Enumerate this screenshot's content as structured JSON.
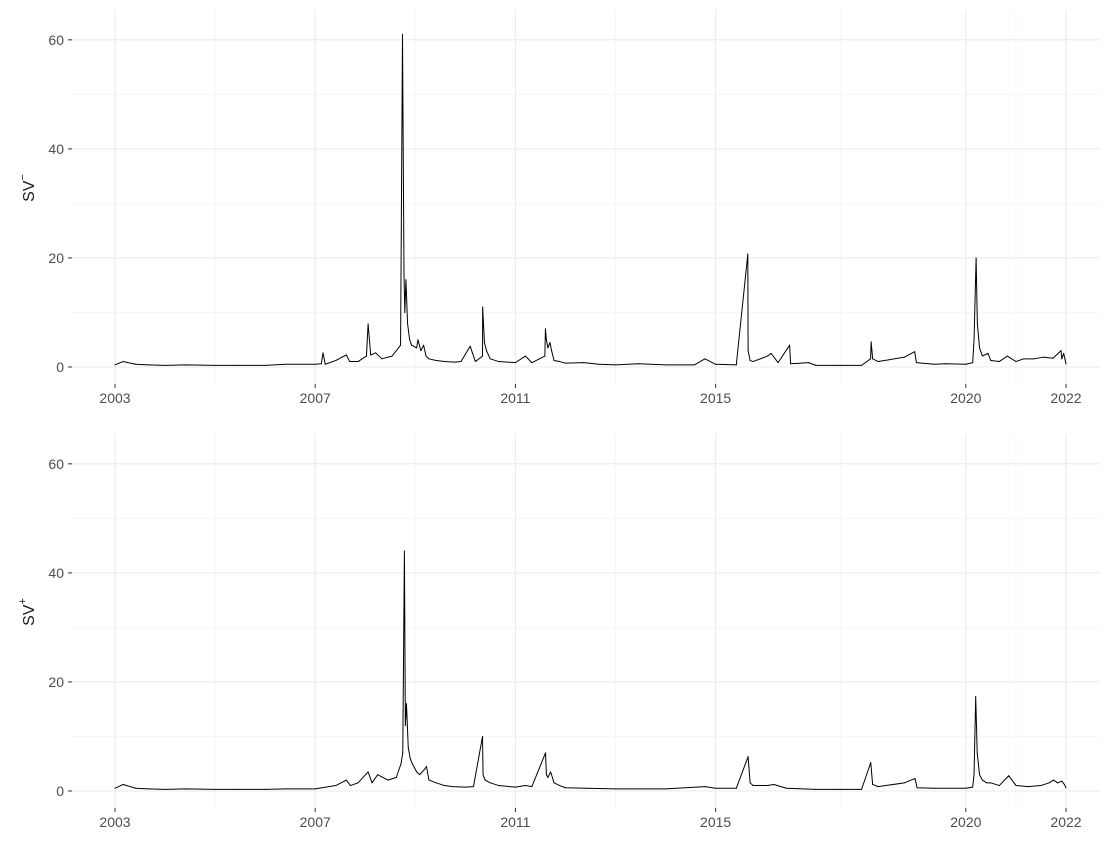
{
  "chart_data": [
    {
      "type": "line",
      "ylabel": "SV",
      "ylabel_sup": "−",
      "xlim": [
        "2003-01-01",
        "2022-01-01"
      ],
      "ylim": [
        0,
        64
      ],
      "x_ticks": [
        "2003",
        "2007",
        "2011",
        "2015",
        "2020",
        "2022"
      ],
      "y_ticks": [
        "0",
        "20",
        "40",
        "60"
      ],
      "grid": true,
      "color": "#000000",
      "series": [
        {
          "x": [
            "2003-01-01",
            "2003-03-01",
            "2003-06-01",
            "2003-09-01",
            "2004-01-01",
            "2004-06-01",
            "2005-01-01",
            "2005-06-01",
            "2006-01-01",
            "2006-06-01",
            "2007-01-01",
            "2007-02-15",
            "2007-02-27",
            "2007-03-15",
            "2007-06-01",
            "2007-07-15",
            "2007-08-16",
            "2007-09-10",
            "2007-11-10",
            "2008-01-10",
            "2008-01-22",
            "2008-02-10",
            "2008-03-17",
            "2008-05-01",
            "2008-07-15",
            "2008-09-15",
            "2008-09-29",
            "2008-10-10",
            "2008-10-16",
            "2008-10-24",
            "2008-11-05",
            "2008-11-20",
            "2008-12-05",
            "2009-01-10",
            "2009-01-20",
            "2009-02-10",
            "2009-03-02",
            "2009-03-20",
            "2009-04-10",
            "2009-06-01",
            "2009-08-01",
            "2009-10-15",
            "2009-11-30",
            "2010-02-05",
            "2010-03-15",
            "2010-05-06",
            "2010-05-07",
            "2010-05-20",
            "2010-06-04",
            "2010-07-01",
            "2010-09-01",
            "2011-01-01",
            "2011-03-15",
            "2011-05-01",
            "2011-08-04",
            "2011-08-08",
            "2011-08-15",
            "2011-08-26",
            "2011-09-10",
            "2011-09-22",
            "2011-10-10",
            "2011-11-20",
            "2012-01-01",
            "2012-05-15",
            "2012-09-01",
            "2013-01-01",
            "2013-06-20",
            "2014-01-01",
            "2014-08-01",
            "2014-10-15",
            "2015-01-01",
            "2015-06-01",
            "2015-08-24",
            "2015-08-26",
            "2015-09-10",
            "2015-10-01",
            "2016-01-15",
            "2016-02-10",
            "2016-04-01",
            "2016-06-24",
            "2016-07-01",
            "2016-11-09",
            "2017-01-01",
            "2017-06-01",
            "2017-12-01",
            "2018-02-05",
            "2018-02-09",
            "2018-02-20",
            "2018-04-01",
            "2018-10-10",
            "2018-12-24",
            "2019-01-05",
            "2019-05-15",
            "2019-08-05",
            "2020-01-01",
            "2020-02-20",
            "2020-03-01",
            "2020-03-16",
            "2020-03-25",
            "2020-04-10",
            "2020-05-01",
            "2020-06-11",
            "2020-07-01",
            "2020-09-01",
            "2020-10-30",
            "2021-01-01",
            "2021-02-26",
            "2021-05-12",
            "2021-07-19",
            "2021-09-28",
            "2021-11-26",
            "2021-12-01",
            "2021-12-15",
            "2022-01-01"
          ],
          "y": [
            0.4,
            1.0,
            0.5,
            0.4,
            0.3,
            0.4,
            0.3,
            0.3,
            0.3,
            0.5,
            0.5,
            0.6,
            2.6,
            0.5,
            1.2,
            1.8,
            2.2,
            1.0,
            1.0,
            2.0,
            7.9,
            2.2,
            2.6,
            1.5,
            2.0,
            4.0,
            61.0,
            17.0,
            10.0,
            16.0,
            8.0,
            5.0,
            4.0,
            3.5,
            5.0,
            3.0,
            4.0,
            2.0,
            1.5,
            1.2,
            1.0,
            0.9,
            1.0,
            3.8,
            1.0,
            2.0,
            11.0,
            4.5,
            3.0,
            1.5,
            1.0,
            0.8,
            2.0,
            0.8,
            2.0,
            7.0,
            5.0,
            3.5,
            4.5,
            3.0,
            1.2,
            1.0,
            0.7,
            0.8,
            0.5,
            0.4,
            0.6,
            0.4,
            0.4,
            1.5,
            0.5,
            0.4,
            20.7,
            3.0,
            1.2,
            1.0,
            2.0,
            2.5,
            0.8,
            4.0,
            0.6,
            0.8,
            0.3,
            0.3,
            0.3,
            1.5,
            4.6,
            1.5,
            1.0,
            1.8,
            2.8,
            0.8,
            0.5,
            0.6,
            0.5,
            0.8,
            5.0,
            20.0,
            8.0,
            3.5,
            2.0,
            2.5,
            1.2,
            1.0,
            2.0,
            1.0,
            1.5,
            1.5,
            1.8,
            1.6,
            3.0,
            1.5,
            2.5,
            0.6
          ]
        }
      ]
    },
    {
      "type": "line",
      "ylabel": "SV",
      "ylabel_sup": "+",
      "xlim": [
        "2003-01-01",
        "2022-01-01"
      ],
      "ylim": [
        0,
        64
      ],
      "x_ticks": [
        "2003",
        "2007",
        "2011",
        "2015",
        "2020",
        "2022"
      ],
      "y_ticks": [
        "0",
        "20",
        "40",
        "60"
      ],
      "grid": true,
      "color": "#000000",
      "series": [
        {
          "x": [
            "2003-01-01",
            "2003-03-01",
            "2003-06-01",
            "2003-09-01",
            "2004-01-01",
            "2004-06-01",
            "2005-01-01",
            "2005-06-01",
            "2006-01-01",
            "2006-06-01",
            "2007-01-01",
            "2007-06-01",
            "2007-08-16",
            "2007-09-15",
            "2007-11-10",
            "2008-01-22",
            "2008-02-20",
            "2008-04-01",
            "2008-06-15",
            "2008-08-15",
            "2008-09-18",
            "2008-10-01",
            "2008-10-13",
            "2008-10-20",
            "2008-10-28",
            "2008-11-10",
            "2008-11-24",
            "2008-12-10",
            "2009-01-10",
            "2009-02-01",
            "2009-03-10",
            "2009-03-23",
            "2009-04-10",
            "2009-06-01",
            "2009-08-01",
            "2009-10-01",
            "2010-01-01",
            "2010-03-01",
            "2010-05-06",
            "2010-05-10",
            "2010-05-25",
            "2010-07-01",
            "2010-09-01",
            "2011-01-01",
            "2011-03-15",
            "2011-05-01",
            "2011-08-09",
            "2011-08-15",
            "2011-08-26",
            "2011-09-15",
            "2011-10-10",
            "2011-11-20",
            "2012-01-01",
            "2012-06-01",
            "2013-01-01",
            "2014-01-01",
            "2014-10-15",
            "2015-01-01",
            "2015-06-01",
            "2015-08-26",
            "2015-09-10",
            "2015-10-01",
            "2016-01-15",
            "2016-03-01",
            "2016-06-01",
            "2017-01-01",
            "2017-06-01",
            "2017-12-01",
            "2018-02-06",
            "2018-02-20",
            "2018-04-01",
            "2018-10-10",
            "2018-12-26",
            "2019-01-10",
            "2019-05-15",
            "2020-01-01",
            "2020-02-20",
            "2020-03-01",
            "2020-03-13",
            "2020-03-24",
            "2020-04-10",
            "2020-05-01",
            "2020-06-01",
            "2020-07-01",
            "2020-09-01",
            "2020-11-09",
            "2021-01-01",
            "2021-04-01",
            "2021-07-01",
            "2021-09-01",
            "2021-10-01",
            "2021-11-01",
            "2021-12-01",
            "2021-12-20",
            "2022-01-01"
          ],
          "y": [
            0.5,
            1.2,
            0.5,
            0.4,
            0.3,
            0.4,
            0.3,
            0.3,
            0.3,
            0.4,
            0.4,
            1.0,
            2.0,
            1.0,
            1.5,
            3.5,
            1.5,
            3.0,
            2.0,
            2.5,
            5.0,
            7.0,
            44.0,
            12.0,
            16.0,
            8.0,
            6.0,
            5.0,
            3.5,
            3.0,
            4.0,
            4.5,
            2.0,
            1.5,
            1.0,
            0.8,
            0.7,
            0.8,
            10.0,
            3.0,
            2.0,
            1.5,
            1.0,
            0.7,
            1.0,
            0.8,
            7.0,
            3.0,
            2.5,
            3.5,
            1.5,
            1.0,
            0.6,
            0.5,
            0.4,
            0.4,
            0.8,
            0.5,
            0.5,
            6.3,
            1.5,
            1.0,
            1.0,
            1.2,
            0.5,
            0.3,
            0.3,
            0.3,
            5.2,
            1.2,
            0.8,
            1.5,
            2.3,
            0.6,
            0.5,
            0.5,
            0.7,
            3.0,
            17.3,
            7.0,
            3.0,
            2.0,
            1.5,
            1.5,
            1.0,
            2.8,
            1.0,
            0.8,
            1.0,
            1.5,
            2.0,
            1.5,
            1.8,
            1.2,
            0.6
          ]
        }
      ]
    }
  ]
}
